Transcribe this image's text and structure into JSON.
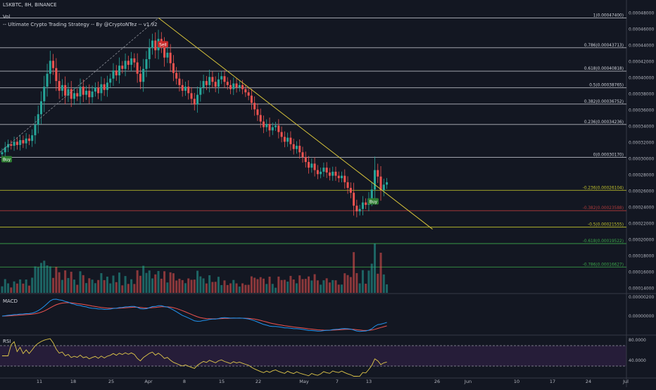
{
  "header": {
    "symbol_line": "LSKBTC, 8H, BINANCE",
    "vol_label": "Vol",
    "strategy_line": "-- Ultimate Crypto Trading Strategy -- By @CryptoNTez -- v1.92"
  },
  "panes": {
    "macd_label": "MACD",
    "rsi_label": "RSI"
  },
  "colors": {
    "background": "#131722",
    "up": "#26a69a",
    "down": "#ef5350",
    "fib_white": "#d1d4dc",
    "fib_yellow": "#c3c32c",
    "fib_red": "#b23b3b",
    "fib_green": "#3ca74a",
    "trendline": "#d4c13a",
    "macd_line": "#2196f3",
    "signal_line": "#ef5350",
    "rsi_line": "#e0c84a",
    "rsi_band": "#2a1f3d"
  },
  "chart_data": {
    "type": "candlestick",
    "title": "LSKBTC, 8H, BINANCE",
    "x_tick_labels": [
      "11",
      "18",
      "25",
      "Apr",
      "8",
      "15",
      "22",
      "May",
      "7",
      "13",
      "26",
      "Jun",
      "10",
      "17",
      "24",
      "Jul"
    ],
    "price_axis": {
      "min": 0.00014,
      "max": 0.00048,
      "tick_labels": [
        "0.00048000",
        "0.00046000",
        "0.00044000",
        "0.00042000",
        "0.00040000",
        "0.00038000",
        "0.00036000",
        "0.00034000",
        "0.00032000",
        "0.00030000",
        "0.00028000",
        "0.00026000",
        "0.00024000",
        "0.00022000",
        "0.00020000",
        "0.00018000",
        "0.00016000",
        "0.00014000"
      ]
    },
    "fib_levels": [
      {
        "label": "1(0.00047400)",
        "value": 0.000474,
        "color": "white"
      },
      {
        "label": "0.786(0.00043713)",
        "value": 0.00043713,
        "color": "white"
      },
      {
        "label": "0.618(0.00040818)",
        "value": 0.00040818,
        "color": "white"
      },
      {
        "label": "0.5(0.00038765)",
        "value": 0.00038765,
        "color": "white"
      },
      {
        "label": "0.382(0.00036752)",
        "value": 0.00036752,
        "color": "white"
      },
      {
        "label": "0.236(0.00034236)",
        "value": 0.00034236,
        "color": "white"
      },
      {
        "label": "0(0.00030170)",
        "value": 0.0003017,
        "color": "white"
      },
      {
        "label": "-0.236(0.00026104)",
        "value": 0.00026104,
        "color": "yellow"
      },
      {
        "label": "-0.382(0.00023588)",
        "value": 0.00023588,
        "color": "red"
      },
      {
        "label": "-0.5(0.00021555)",
        "value": 0.00021555,
        "color": "yellow"
      },
      {
        "label": "-0.618(0.00019522)",
        "value": 0.00019522,
        "color": "green"
      },
      {
        "label": "-0.786(0.00016627)",
        "value": 0.00016627,
        "color": "green"
      }
    ],
    "signals": [
      {
        "label": "Buy",
        "value": 0.000299,
        "type": "buy"
      },
      {
        "label": "Sell",
        "value": 0.000441,
        "type": "sell"
      },
      {
        "label": "Buy",
        "value": 0.000247,
        "type": "buy"
      }
    ],
    "closes": [
      0.000308,
      0.000314,
      0.000318,
      0.000316,
      0.000321,
      0.000317,
      0.000323,
      0.000319,
      0.000325,
      0.000322,
      0.000329,
      0.000342,
      0.000355,
      0.000371,
      0.000389,
      0.000405,
      0.000421,
      0.000412,
      0.000396,
      0.000384,
      0.000391,
      0.000378,
      0.000386,
      0.000374,
      0.000381,
      0.000377,
      0.000389,
      0.000379,
      0.000384,
      0.000376,
      0.000383,
      0.000388,
      0.000381,
      0.000392,
      0.000385,
      0.000394,
      0.000399,
      0.000409,
      0.000403,
      0.000415,
      0.000411,
      0.000421,
      0.000416,
      0.000424,
      0.000419,
      0.000405,
      0.000395,
      0.000411,
      0.000423,
      0.000437,
      0.000446,
      0.000434,
      0.000448,
      0.000439,
      0.000425,
      0.000431,
      0.000418,
      0.000406,
      0.000399,
      0.000391,
      0.000384,
      0.000389,
      0.000381,
      0.000374,
      0.000367,
      0.000379,
      0.000388,
      0.000396,
      0.000391,
      0.000401,
      0.000395,
      0.000389,
      0.000398,
      0.000402,
      0.000395,
      0.000391,
      0.000386,
      0.000393,
      0.000388,
      0.000391,
      0.000386,
      0.000382,
      0.000378,
      0.000369,
      0.000361,
      0.000354,
      0.000346,
      0.000339,
      0.000343,
      0.000335,
      0.000339,
      0.000341,
      0.000333,
      0.000327,
      0.000321,
      0.000326,
      0.000318,
      0.000312,
      0.000316,
      0.000308,
      0.000302,
      0.000296,
      0.000289,
      0.000294,
      0.000286,
      0.000281,
      0.000284,
      0.000289,
      0.000283,
      0.000279,
      0.000284,
      0.000279,
      0.000276,
      0.000279,
      0.000271,
      0.000264,
      0.000258,
      0.000242,
      0.000235,
      0.000238,
      0.000246,
      0.000243,
      0.000251,
      0.000262,
      0.000286,
      0.000278,
      0.000261,
      0.000268,
      0.000271
    ]
  }
}
